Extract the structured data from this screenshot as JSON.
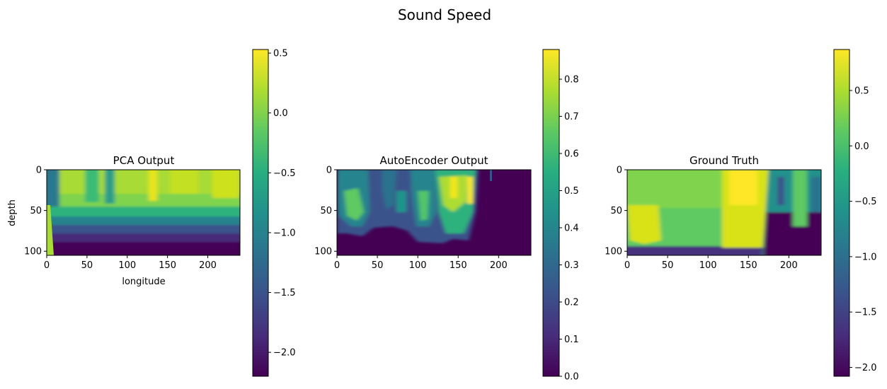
{
  "figure": {
    "title": "Sound Speed"
  },
  "chart_data": [
    {
      "type": "heatmap",
      "title": "PCA Output",
      "xlabel": "longitude",
      "ylabel": "depth",
      "xlim": [
        0,
        240
      ],
      "ylim": [
        105,
        0
      ],
      "x_ticks": [
        0,
        50,
        100,
        150,
        200
      ],
      "y_ticks": [
        0,
        50,
        100
      ],
      "colorbar": {
        "range": [
          -2.2,
          0.53
        ],
        "ticks": [
          0.5,
          0.0,
          -0.5,
          -1.0,
          -1.5,
          -2.0
        ],
        "tick_labels": [
          "0.5",
          "0.0",
          "−0.5",
          "−1.0",
          "−1.5",
          "−2.0"
        ],
        "colormap": "viridis"
      }
    },
    {
      "type": "heatmap",
      "title": "AutoEncoder Output",
      "xlabel": "",
      "ylabel": "",
      "xlim": [
        0,
        240
      ],
      "ylim": [
        105,
        0
      ],
      "x_ticks": [
        0,
        50,
        100,
        150,
        200
      ],
      "y_ticks": [
        0,
        50,
        100
      ],
      "colorbar": {
        "range": [
          0.0,
          0.88
        ],
        "ticks": [
          0.8,
          0.7,
          0.6,
          0.5,
          0.4,
          0.3,
          0.2,
          0.1,
          0.0
        ],
        "tick_labels": [
          "0.8",
          "0.7",
          "0.6",
          "0.5",
          "0.4",
          "0.3",
          "0.2",
          "0.1",
          "0.0"
        ],
        "colormap": "viridis"
      }
    },
    {
      "type": "heatmap",
      "title": "Ground Truth",
      "xlabel": "",
      "ylabel": "",
      "xlim": [
        0,
        240
      ],
      "ylim": [
        105,
        0
      ],
      "x_ticks": [
        0,
        50,
        100,
        150,
        200
      ],
      "y_ticks": [
        0,
        50,
        100
      ],
      "colorbar": {
        "range": [
          -2.08,
          0.87
        ],
        "ticks": [
          0.5,
          0.0,
          -0.5,
          -1.0,
          -1.5,
          -2.0
        ],
        "tick_labels": [
          "0.5",
          "0.0",
          "−0.5",
          "−1.0",
          "−1.5",
          "−2.0"
        ],
        "colormap": "viridis"
      }
    }
  ]
}
